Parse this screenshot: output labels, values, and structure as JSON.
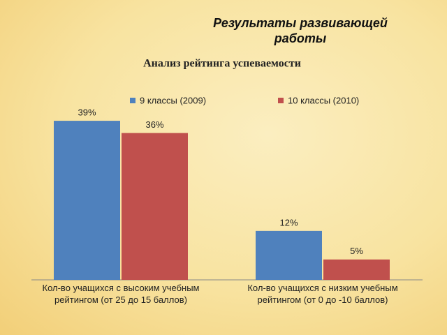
{
  "header": {
    "title": "Результаты развивающей работы"
  },
  "chart_data": {
    "type": "bar",
    "title": "Анализ рейтинга успеваемости",
    "categories": [
      "Кол-во учащихся с высоким учебным рейтингом (от 25 до 15 баллов)",
      "Кол-во учащихся с низким учебным рейтингом (от 0 до -10 баллов)"
    ],
    "series": [
      {
        "name": "9 классы (2009)",
        "color": "#4f81bd",
        "values": [
          39,
          12
        ],
        "value_labels": [
          "39%",
          "12%"
        ]
      },
      {
        "name": "10 классы (2010)",
        "color": "#c0504d",
        "values": [
          36,
          5
        ],
        "value_labels": [
          "36%",
          "5%"
        ]
      }
    ],
    "ylim": [
      0,
      45
    ],
    "legend": "top"
  }
}
